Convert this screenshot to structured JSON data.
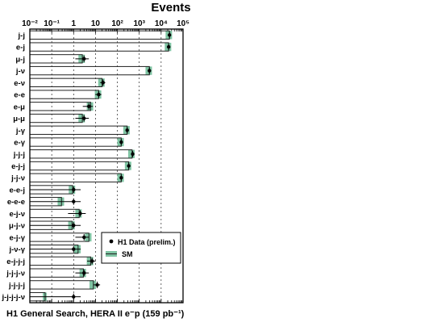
{
  "chart_data": {
    "type": "bar",
    "orientation": "horizontal",
    "title": "Events",
    "caption": "H1 General Search, HERA II e⁻p (159 pb⁻¹)",
    "x_scale": "log",
    "xlim": [
      0.01,
      100000
    ],
    "x_ticks": [
      "10⁻²",
      "10⁻¹",
      "1",
      "10",
      "10²",
      "10³",
      "10⁴",
      "10⁵"
    ],
    "grid": "vertical dashed at decades",
    "legend_position": "bottom-right",
    "legend": [
      {
        "label": "H1 Data (prelim.)"
      },
      {
        "label": "SM"
      }
    ],
    "categories": [
      "j-j",
      "e-j",
      "μ-j",
      "j-ν",
      "e-ν",
      "e-e",
      "e-μ",
      "μ-μ",
      "j-γ",
      "e-γ",
      "j-j-j",
      "e-j-j",
      "j-j-ν",
      "e-e-j",
      "e-e-e",
      "e-j-ν",
      "μ-j-ν",
      "e-j-γ",
      "j-ν-γ",
      "e-j-j-j",
      "j-j-j-ν",
      "j-j-j-j",
      "j-j-j-j-ν"
    ],
    "series": [
      {
        "name": "SM",
        "values": [
          24000,
          22000,
          2.5,
          2900,
          20,
          14,
          6,
          2.5,
          280,
          150,
          470,
          330,
          150,
          0.9,
          0.28,
          1.8,
          0.85,
          5,
          1.6,
          6,
          2.8,
          8,
          0.05
        ]
      },
      {
        "name": "H1 Data (prelim.)",
        "values": [
          24000,
          22000,
          3,
          2900,
          22,
          14,
          5,
          3,
          280,
          150,
          500,
          330,
          150,
          1,
          1,
          2,
          1,
          3,
          1,
          7,
          3,
          12,
          1
        ]
      }
    ]
  },
  "colors": {
    "sm_band": "#7fc4a3",
    "sm_line": "#222222",
    "data_marker": "#000000",
    "grid": "#000000"
  }
}
